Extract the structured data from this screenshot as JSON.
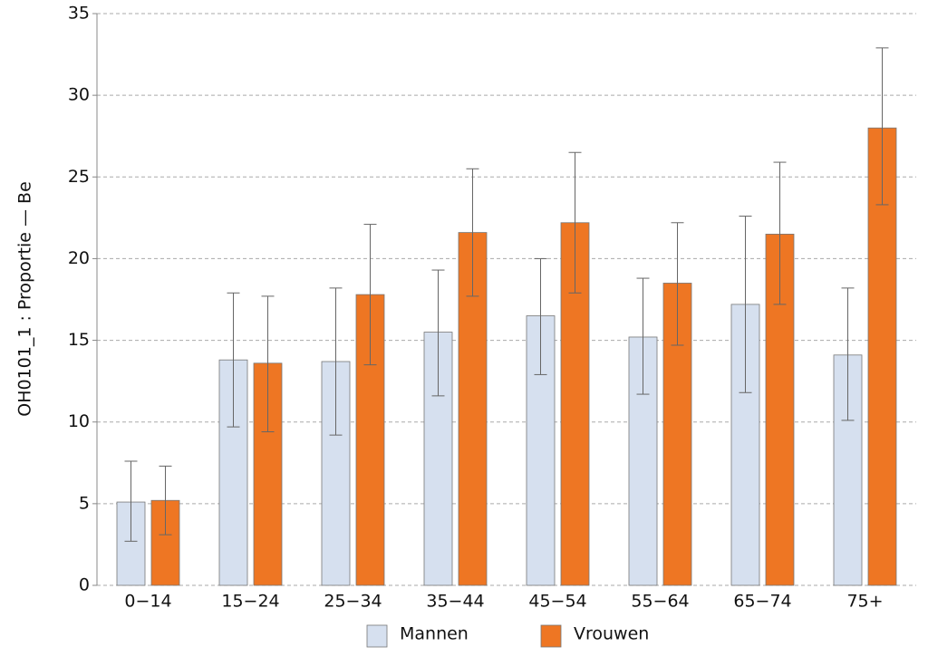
{
  "chart_data": {
    "type": "bar",
    "y_label": "OH0101_1 : Proportie — Be",
    "categories": [
      "0−14",
      "15−24",
      "25−34",
      "35−44",
      "45−54",
      "55−64",
      "65−74",
      "75+"
    ],
    "series": [
      {
        "name": "Mannen",
        "color": "#d6e0ef",
        "values": [
          5.1,
          13.8,
          13.7,
          15.5,
          16.5,
          15.2,
          17.2,
          14.1
        ],
        "lower": [
          2.7,
          9.7,
          9.2,
          11.6,
          12.9,
          11.7,
          11.8,
          10.1
        ],
        "upper": [
          7.6,
          17.9,
          18.2,
          19.3,
          20.0,
          18.8,
          22.6,
          18.2
        ]
      },
      {
        "name": "Vrouwen",
        "color": "#ee7623",
        "values": [
          5.2,
          13.6,
          17.8,
          21.6,
          22.2,
          18.5,
          21.5,
          28.0
        ],
        "lower": [
          3.1,
          9.4,
          13.5,
          17.7,
          17.9,
          14.7,
          17.2,
          23.3
        ],
        "upper": [
          7.3,
          17.7,
          22.1,
          25.5,
          26.5,
          22.2,
          25.9,
          32.9
        ]
      }
    ],
    "ylim": [
      0,
      35
    ],
    "yticks": [
      0,
      5,
      10,
      15,
      20,
      25,
      30,
      35
    ],
    "grid": true,
    "legend": "bottom"
  }
}
